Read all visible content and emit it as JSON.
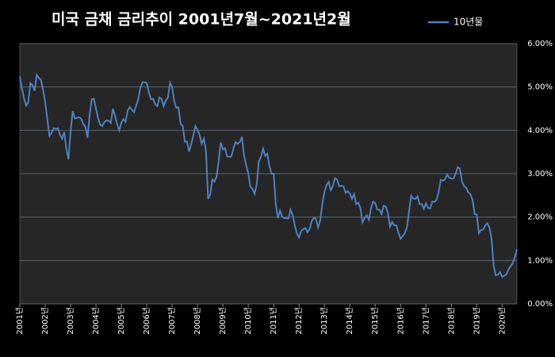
{
  "chart_data": {
    "type": "line",
    "title": "미국 금채 금리추이  2001년7월~2021년2월",
    "categories": [
      "2001년",
      null,
      null,
      null,
      null,
      null,
      null,
      null,
      null,
      null,
      null,
      null,
      "2002년",
      null,
      null,
      null,
      null,
      null,
      null,
      null,
      null,
      null,
      null,
      null,
      "2003년",
      null,
      null,
      null,
      null,
      null,
      null,
      null,
      null,
      null,
      null,
      null,
      "2004년",
      null,
      null,
      null,
      null,
      null,
      null,
      null,
      null,
      null,
      null,
      null,
      "2005년",
      null,
      null,
      null,
      null,
      null,
      null,
      null,
      null,
      null,
      null,
      null,
      "2006년",
      null,
      null,
      null,
      null,
      null,
      null,
      null,
      null,
      null,
      null,
      null,
      "2007년",
      null,
      null,
      null,
      null,
      null,
      null,
      null,
      null,
      null,
      null,
      null,
      "2008년",
      null,
      null,
      null,
      null,
      null,
      null,
      null,
      null,
      null,
      null,
      null,
      "2009년",
      null,
      null,
      null,
      null,
      null,
      null,
      null,
      null,
      null,
      null,
      null,
      "2010년",
      null,
      null,
      null,
      null,
      null,
      null,
      null,
      null,
      null,
      null,
      null,
      "2011년",
      null,
      null,
      null,
      null,
      null,
      null,
      null,
      null,
      null,
      null,
      null,
      "2012년",
      null,
      null,
      null,
      null,
      null,
      null,
      null,
      null,
      null,
      null,
      null,
      "2013년",
      null,
      null,
      null,
      null,
      null,
      null,
      null,
      null,
      null,
      null,
      null,
      "2014년",
      null,
      null,
      null,
      null,
      null,
      null,
      null,
      null,
      null,
      null,
      null,
      "2015년",
      null,
      null,
      null,
      null,
      null,
      null,
      null,
      null,
      null,
      null,
      null,
      "2016년",
      null,
      null,
      null,
      null,
      null,
      null,
      null,
      null,
      null,
      null,
      null,
      "2017년",
      null,
      null,
      null,
      null,
      null,
      null,
      null,
      null,
      null,
      null,
      null,
      "2018년",
      null,
      null,
      null,
      null,
      null,
      null,
      null,
      null,
      null,
      null,
      null,
      "2019년",
      null,
      null,
      null,
      null,
      null,
      null,
      null,
      null,
      null,
      null,
      null,
      "2020년",
      null,
      null,
      null,
      null,
      null,
      null,
      null
    ],
    "series": [
      {
        "name": "10년물",
        "color": "#4f81bd",
        "values": [
          5.24,
          4.97,
          4.73,
          4.57,
          4.65,
          5.09,
          5.04,
          4.91,
          5.28,
          5.21,
          5.16,
          4.93,
          4.65,
          4.26,
          3.87,
          3.94,
          4.05,
          4.03,
          4.05,
          3.9,
          3.81,
          3.96,
          3.57,
          3.33,
          3.98,
          4.45,
          4.27,
          4.29,
          4.3,
          4.27,
          4.15,
          4.08,
          3.83,
          4.35,
          4.72,
          4.73,
          4.5,
          4.28,
          4.13,
          4.1,
          4.19,
          4.23,
          4.22,
          4.17,
          4.5,
          4.34,
          4.14,
          4.0,
          4.18,
          4.26,
          4.2,
          4.46,
          4.54,
          4.47,
          4.42,
          4.57,
          4.72,
          4.99,
          5.11,
          5.11,
          5.09,
          4.88,
          4.72,
          4.73,
          4.6,
          4.56,
          4.76,
          4.72,
          4.56,
          4.69,
          4.75,
          5.1,
          5.0,
          4.67,
          4.52,
          4.53,
          4.15,
          4.1,
          3.74,
          3.74,
          3.51,
          3.68,
          3.88,
          4.1,
          4.01,
          3.89,
          3.69,
          3.81,
          3.53,
          2.42,
          2.52,
          2.87,
          2.82,
          2.93,
          3.29,
          3.72,
          3.56,
          3.59,
          3.4,
          3.39,
          3.4,
          3.59,
          3.73,
          3.69,
          3.73,
          3.85,
          3.42,
          3.2,
          3.01,
          2.7,
          2.65,
          2.54,
          2.76,
          3.29,
          3.39,
          3.58,
          3.41,
          3.46,
          3.17,
          3.0,
          3.0,
          2.3,
          1.98,
          2.15,
          2.01,
          1.98,
          1.97,
          1.97,
          2.17,
          2.05,
          1.8,
          1.62,
          1.53,
          1.68,
          1.72,
          1.75,
          1.65,
          1.72,
          1.91,
          1.98,
          1.96,
          1.76,
          1.93,
          2.3,
          2.58,
          2.74,
          2.81,
          2.62,
          2.72,
          2.9,
          2.86,
          2.71,
          2.72,
          2.71,
          2.56,
          2.6,
          2.54,
          2.42,
          2.53,
          2.3,
          2.33,
          2.21,
          1.88,
          1.98,
          2.04,
          1.94,
          2.2,
          2.36,
          2.32,
          2.17,
          2.17,
          2.07,
          2.26,
          2.24,
          2.09,
          1.78,
          1.89,
          1.81,
          1.81,
          1.64,
          1.5,
          1.56,
          1.63,
          1.76,
          2.14,
          2.49,
          2.43,
          2.42,
          2.48,
          2.3,
          2.3,
          2.19,
          2.32,
          2.21,
          2.2,
          2.36,
          2.35,
          2.4,
          2.58,
          2.86,
          2.84,
          2.87,
          2.98,
          2.91,
          2.89,
          2.89,
          3.0,
          3.15,
          3.12,
          2.83,
          2.71,
          2.68,
          2.57,
          2.53,
          2.4,
          2.07,
          2.06,
          1.63,
          1.7,
          1.71,
          1.81,
          1.86,
          1.76,
          1.5,
          0.87,
          0.66,
          0.67,
          0.73,
          0.62,
          0.65,
          0.68,
          0.79,
          0.87,
          0.93,
          1.08,
          1.26
        ]
      }
    ],
    "ylim": [
      0,
      6
    ],
    "yticks": [
      {
        "value": 0,
        "label": "0.00%"
      },
      {
        "value": 1,
        "label": "1.00%"
      },
      {
        "value": 2,
        "label": "2.00%"
      },
      {
        "value": 3,
        "label": "3.00%"
      },
      {
        "value": 4,
        "label": "4.00%"
      },
      {
        "value": 5,
        "label": "5.00%"
      },
      {
        "value": 6,
        "label": "6.00%"
      }
    ],
    "grid": true,
    "legend": "top-right"
  }
}
